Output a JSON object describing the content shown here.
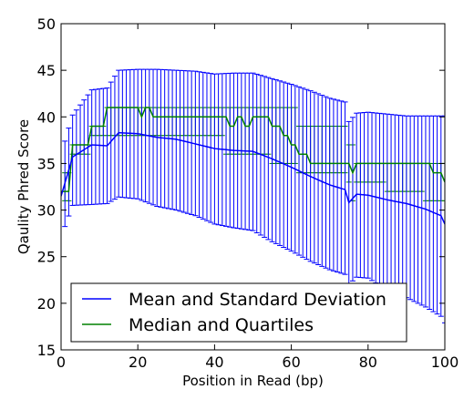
{
  "chart_data": {
    "type": "line",
    "title": "",
    "xlabel": "Position in Read (bp)",
    "ylabel": "Qaulity Phred Score",
    "xlim": [
      0,
      100
    ],
    "ylim": [
      15,
      50
    ],
    "xticks": [
      0,
      20,
      40,
      60,
      80,
      100
    ],
    "yticks": [
      15,
      20,
      25,
      30,
      35,
      40,
      45,
      50
    ],
    "grid": false,
    "legend_position": "lower-left",
    "series": [
      {
        "name": "Mean and Standard Deviation",
        "color": "#0000ff",
        "x": [
          0,
          3,
          8,
          12,
          15,
          20,
          25,
          30,
          35,
          40,
          45,
          50,
          55,
          60,
          65,
          70,
          74,
          75,
          77,
          80,
          85,
          90,
          95,
          99,
          100
        ],
        "mean": [
          31.5,
          35.7,
          37.0,
          36.9,
          38.3,
          38.2,
          37.8,
          37.6,
          37.1,
          36.6,
          36.4,
          36.3,
          35.5,
          34.6,
          33.6,
          32.7,
          32.2,
          30.8,
          31.7,
          31.6,
          31.1,
          30.7,
          30.1,
          29.4,
          28.5
        ],
        "upper": [
          36.0,
          40.2,
          42.9,
          43.1,
          45.0,
          45.1,
          45.1,
          45.0,
          44.9,
          44.6,
          44.7,
          44.7,
          44.1,
          43.5,
          42.8,
          42.0,
          41.6,
          39.5,
          40.4,
          40.5,
          40.3,
          40.1,
          40.1,
          40.1,
          40.1
        ],
        "lower": [
          27.1,
          30.5,
          30.6,
          30.7,
          31.4,
          31.2,
          30.4,
          30.0,
          29.4,
          28.5,
          28.1,
          27.8,
          26.6,
          25.6,
          24.5,
          23.6,
          23.1,
          22.0,
          22.8,
          22.7,
          21.4,
          20.6,
          19.6,
          18.6,
          17.9
        ]
      },
      {
        "name": "Median and Quartiles",
        "color": "#008000",
        "x": [
          0,
          3,
          8,
          12,
          20,
          21,
          22,
          24,
          34,
          43,
          44,
          46,
          47,
          48,
          50,
          55,
          58,
          60,
          62,
          65,
          75,
          76,
          77,
          80,
          85,
          90,
          95,
          97,
          100
        ],
        "median": [
          32.0,
          37.0,
          39.0,
          41.0,
          41.0,
          40.0,
          41.0,
          40.0,
          40.0,
          40.0,
          39.0,
          40.0,
          40.0,
          39.0,
          40.0,
          39.0,
          38.0,
          37.0,
          36.0,
          35.0,
          35.0,
          34.0,
          35.0,
          35.0,
          35.0,
          35.0,
          35.0,
          34.0,
          33.0
        ],
        "q3": [
          34.0,
          37.0,
          39.0,
          41.0,
          41.0,
          41.0,
          41.0,
          41.0,
          41.0,
          41.0,
          41.0,
          41.0,
          41.0,
          41.0,
          41.0,
          41.0,
          41.0,
          41.0,
          39.0,
          39.0,
          37.0,
          37.0,
          35.0,
          35.0,
          35.0,
          35.0,
          35.0,
          35.0,
          35.0
        ],
        "q1": [
          31.0,
          36.0,
          38.0,
          38.0,
          38.0,
          38.0,
          38.0,
          38.0,
          38.0,
          36.0,
          36.0,
          36.0,
          36.0,
          36.0,
          36.0,
          35.0,
          35.0,
          35.0,
          34.0,
          34.0,
          33.0,
          31.0,
          33.0,
          33.0,
          32.0,
          32.0,
          31.0,
          31.0,
          31.0
        ]
      }
    ]
  }
}
